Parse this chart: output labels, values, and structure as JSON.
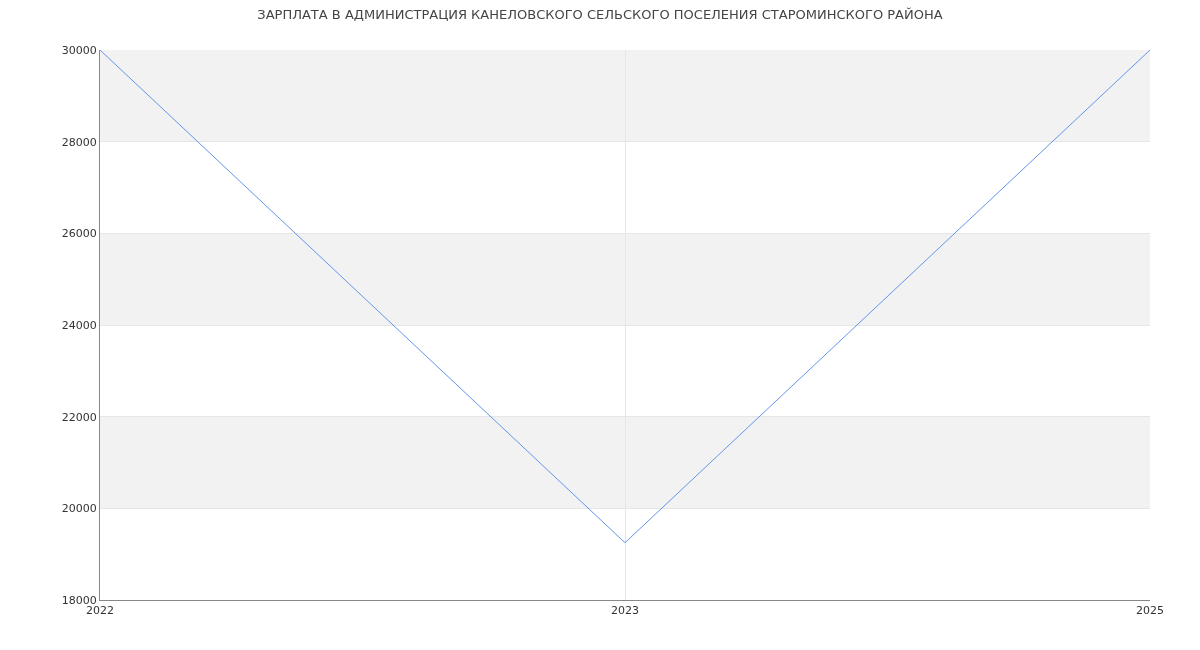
{
  "chart_data": {
    "type": "line",
    "title": "ЗАРПЛАТА В АДМИНИСТРАЦИЯ КАНЕЛОВСКОГО СЕЛЬСКОГО ПОСЕЛЕНИЯ СТАРОМИНСКОГО РАЙОНА",
    "categories": [
      "2022",
      "2023",
      "2025"
    ],
    "series": [
      {
        "color": "#6495ed",
        "values": [
          30000,
          19250,
          30000
        ]
      }
    ],
    "ylim": [
      18000,
      30000
    ],
    "yticks": [
      18000,
      20000,
      22000,
      24000,
      26000,
      28000,
      30000
    ],
    "grid": true,
    "marker": "none",
    "line_style": "solid",
    "bands": [
      {
        "axis": "y",
        "from": 20000,
        "to": 22000,
        "color": "#f2f2f2"
      },
      {
        "axis": "y",
        "from": 24000,
        "to": 26000,
        "color": "#f2f2f2"
      },
      {
        "axis": "y",
        "from": 28000,
        "to": 30000,
        "color": "#f2f2f2"
      }
    ]
  }
}
